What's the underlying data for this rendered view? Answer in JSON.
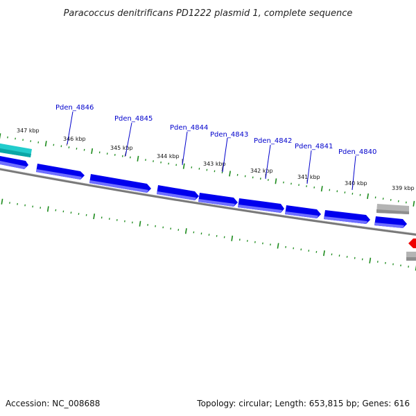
{
  "title": "Paracoccus denitrificans PD1222 plasmid 1, complete sequence",
  "footer": {
    "accession": "Accession: NC_008688",
    "topology": "Topology: circular; Length: 653,815 bp; Genes: 616"
  },
  "colors": {
    "forward_gene": "#0000ee",
    "forward_gene_light": "#6f6fff",
    "cyan_feature": "#22cccc",
    "gray_feature": "#b4b4b4",
    "red_feature": "#ee0000",
    "backbone": "#777777",
    "tick": "#1a8a1a",
    "label": "#0000cc"
  },
  "scale_labels": [
    {
      "text": "347 kbp"
    },
    {
      "text": "346 kbp"
    },
    {
      "text": "345 kbp"
    },
    {
      "text": "344 kbp"
    },
    {
      "text": "343 kbp"
    },
    {
      "text": "342 kbp"
    },
    {
      "text": "341 kbp"
    },
    {
      "text": "340 kbp"
    },
    {
      "text": "339 kbp"
    }
  ],
  "gene_labels": [
    {
      "text": "Pden_4846"
    },
    {
      "text": "Pden_4845"
    },
    {
      "text": "Pden_4844"
    },
    {
      "text": "Pden_4843"
    },
    {
      "text": "Pden_4842"
    },
    {
      "text": "Pden_4841"
    },
    {
      "text": "Pden_4840"
    }
  ]
}
